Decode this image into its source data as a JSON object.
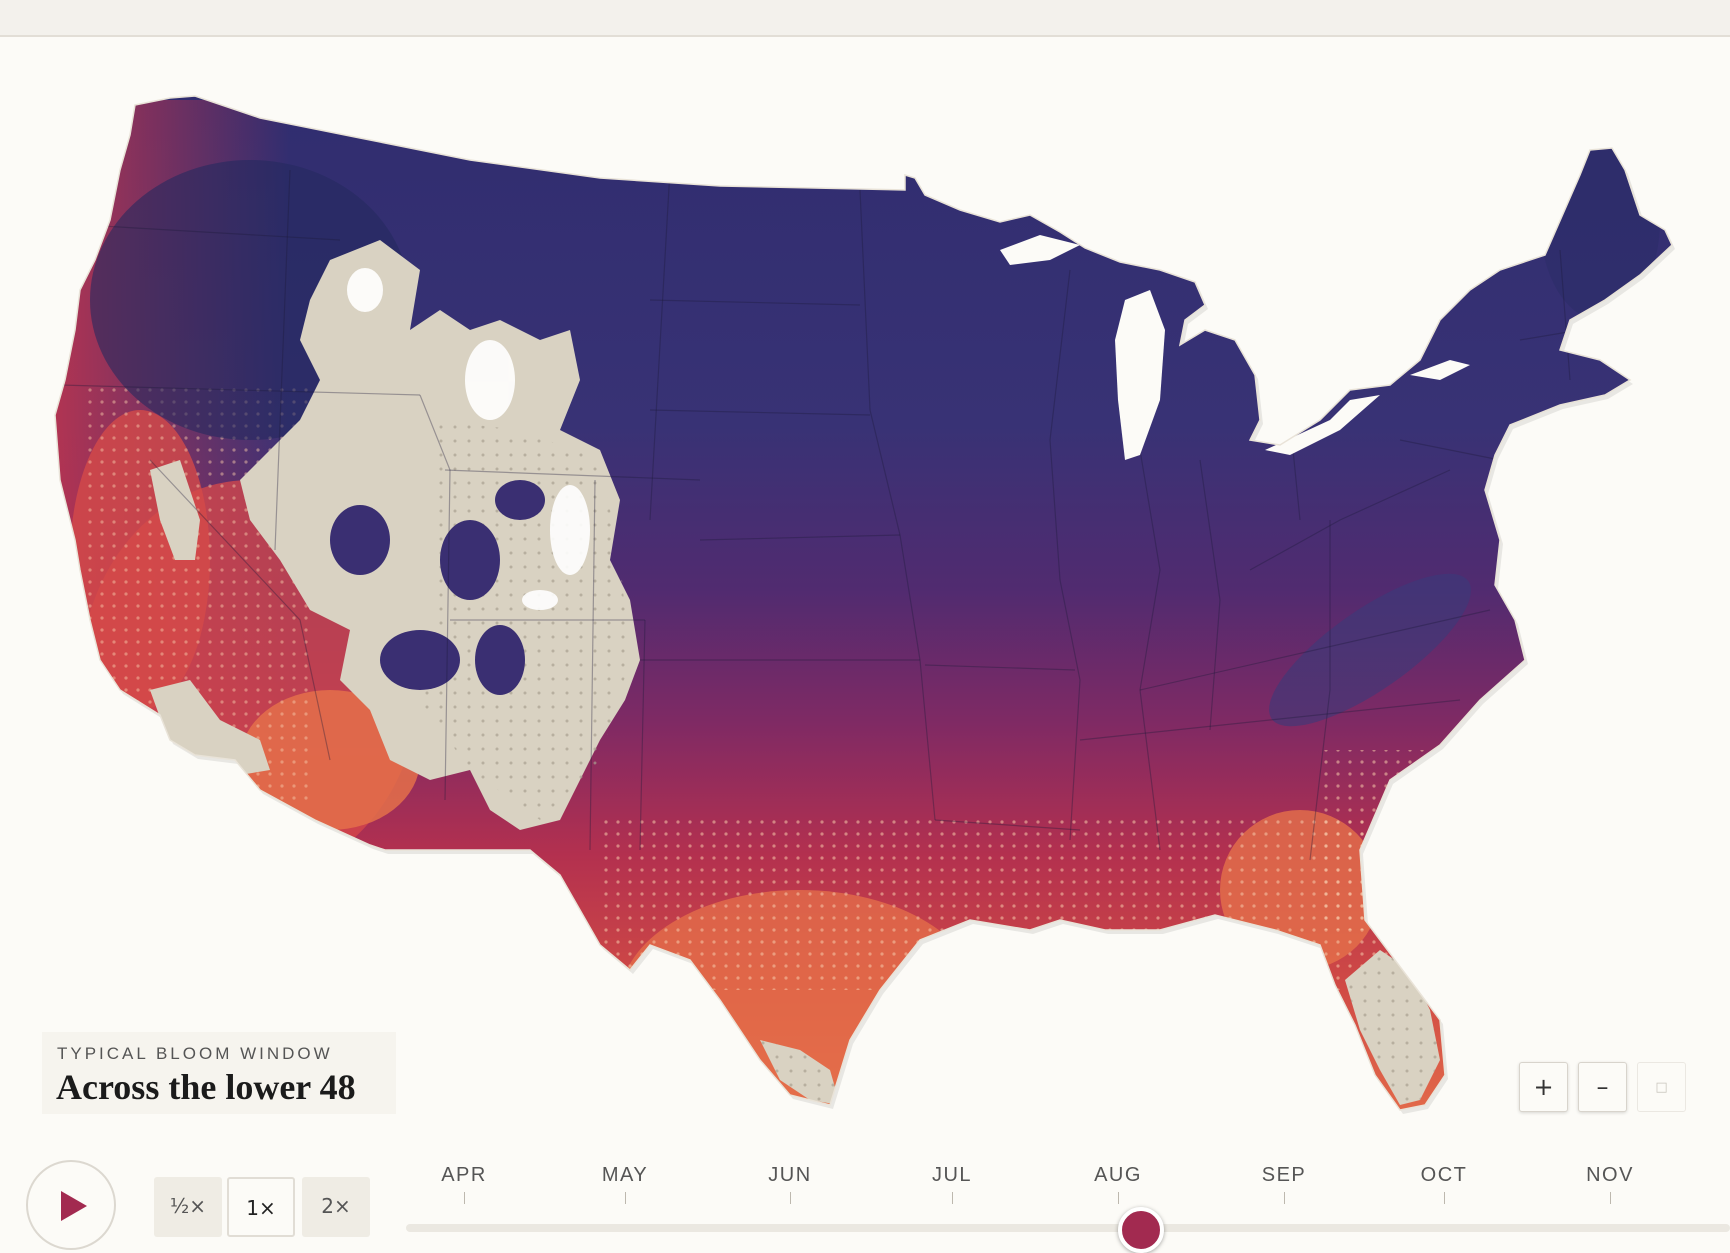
{
  "map": {
    "title_eyebrow": "TYPICAL BLOOM WINDOW",
    "title": "Across the lower 48",
    "colors": {
      "cold": "#332f72",
      "mid": "#5a2a70",
      "warm": "#b8304d",
      "hot": "#e6704a",
      "no_bloom": "#d9d2c2",
      "background": "#fcfbf7"
    }
  },
  "zoom_controls": {
    "zoom_in_label": "+",
    "zoom_out_label": "–",
    "reset_label": "□"
  },
  "playback": {
    "play_icon": "play-icon",
    "speeds": [
      "½×",
      "1×",
      "2×"
    ],
    "selected_speed": "1×"
  },
  "timeline": {
    "months": [
      "APR",
      "MAY",
      "JUN",
      "JUL",
      "AUG",
      "SEP",
      "OCT",
      "NOV"
    ],
    "current_month": "AUG",
    "slider_position_fraction": 0.5
  }
}
